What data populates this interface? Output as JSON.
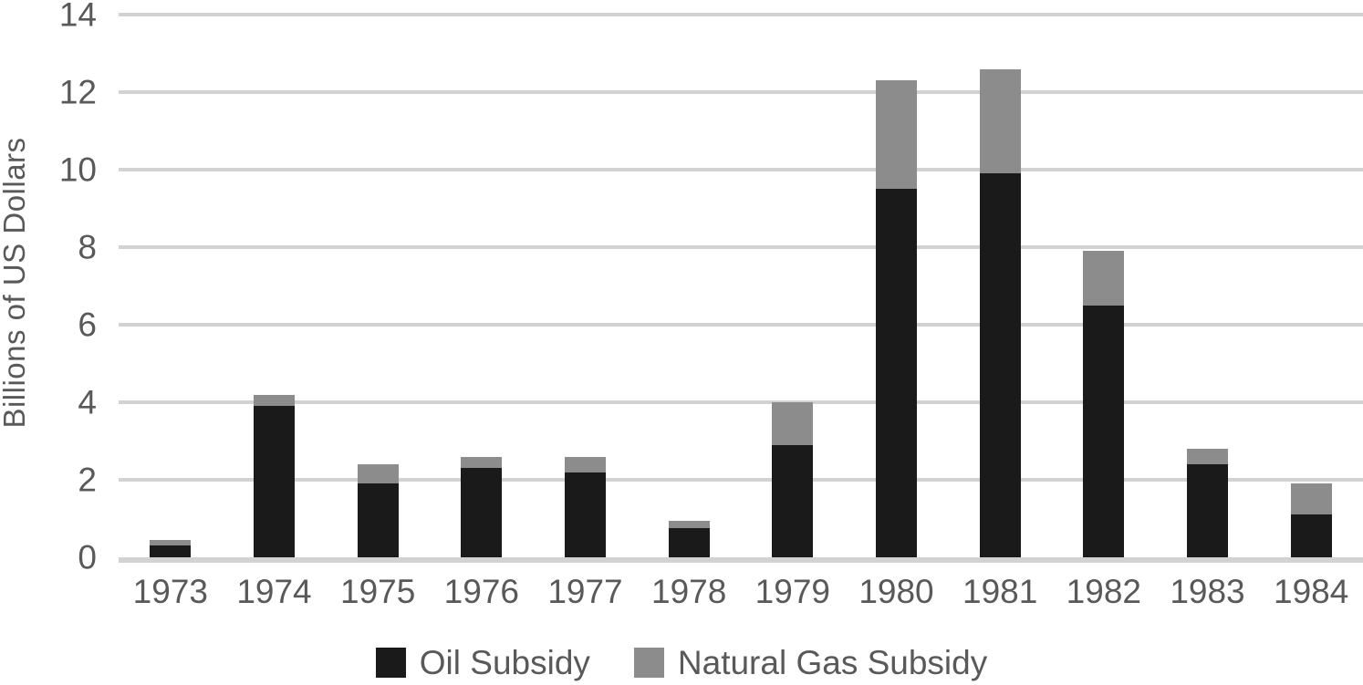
{
  "chart_data": {
    "type": "bar",
    "stacked": true,
    "title": "",
    "xlabel": "",
    "ylabel": "Billions of US Dollars",
    "categories": [
      "1973",
      "1974",
      "1975",
      "1976",
      "1977",
      "1978",
      "1979",
      "1980",
      "1981",
      "1982",
      "1983",
      "1984"
    ],
    "series": [
      {
        "name": "Oil Subsidy",
        "color": "#1a1a1a",
        "values": [
          0.3,
          3.9,
          1.9,
          2.3,
          2.2,
          0.75,
          2.9,
          9.5,
          9.9,
          6.5,
          2.4,
          1.1
        ]
      },
      {
        "name": "Natural Gas Subsidy",
        "color": "#8c8c8c",
        "values": [
          0.15,
          0.3,
          0.5,
          0.3,
          0.4,
          0.2,
          1.1,
          2.8,
          2.7,
          1.4,
          0.4,
          0.8
        ]
      }
    ],
    "ylim": [
      0,
      14
    ],
    "yticks": [
      0,
      2,
      4,
      6,
      8,
      10,
      12,
      14
    ],
    "grid": "horizontal",
    "gridline_color": "#d2d2d2",
    "axis_text_color": "#595959",
    "legend_position": "bottom"
  }
}
